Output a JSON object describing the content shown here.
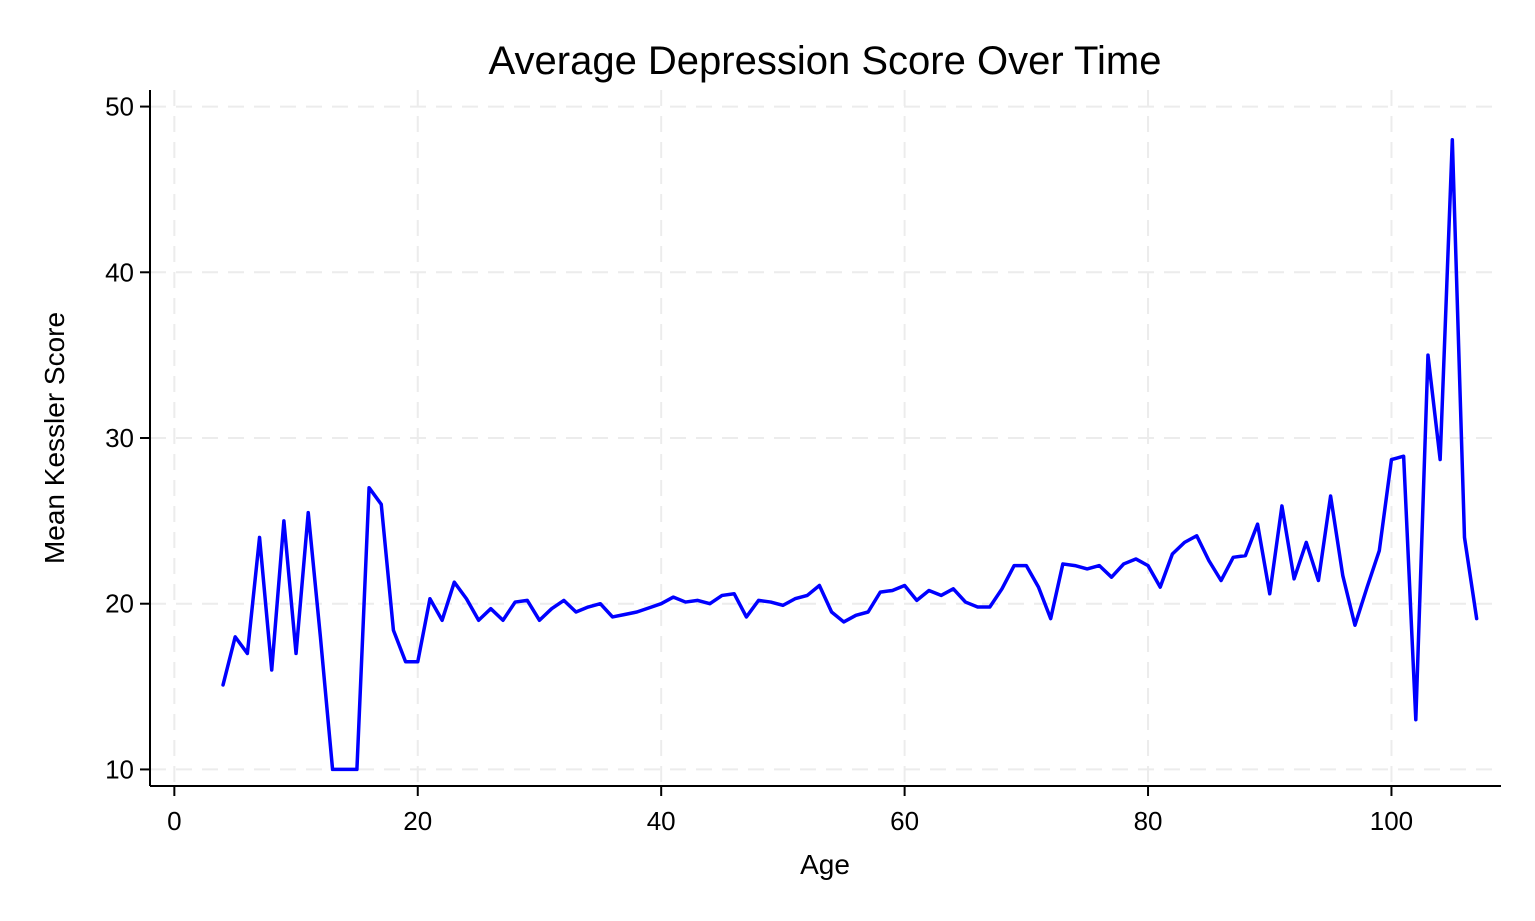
{
  "chart_data": {
    "type": "line",
    "title": "Average Depression Score Over Time",
    "xlabel": "Age",
    "ylabel": "Mean Kessler Score",
    "xlim": [
      -2,
      109
    ],
    "ylim": [
      9,
      51
    ],
    "xticks": [
      0,
      20,
      40,
      60,
      80,
      100
    ],
    "yticks": [
      10,
      20,
      30,
      40,
      50
    ],
    "grid": true,
    "legend": "none",
    "series": [
      {
        "color": "#0000ff",
        "x": [
          4,
          5,
          6,
          7,
          8,
          9,
          10,
          11,
          12,
          13,
          14,
          15,
          16,
          17,
          18,
          19,
          20,
          21,
          22,
          23,
          24,
          25,
          26,
          27,
          28,
          29,
          30,
          31,
          32,
          33,
          34,
          35,
          36,
          37,
          38,
          39,
          40,
          41,
          42,
          43,
          44,
          45,
          46,
          47,
          48,
          49,
          50,
          51,
          52,
          53,
          54,
          55,
          56,
          57,
          58,
          59,
          60,
          61,
          62,
          63,
          64,
          65,
          66,
          67,
          68,
          69,
          70,
          71,
          72,
          73,
          74,
          75,
          76,
          77,
          78,
          79,
          80,
          81,
          82,
          83,
          84,
          85,
          86,
          87,
          88,
          89,
          90,
          91,
          92,
          93,
          94,
          95,
          96,
          97,
          98,
          99,
          100,
          101,
          102,
          103,
          104,
          105,
          106,
          107
        ],
        "y": [
          15.1,
          18.0,
          17.0,
          24.0,
          16.0,
          25.0,
          17.0,
          25.5,
          18.0,
          10.0,
          10.0,
          10.0,
          27.0,
          26.0,
          18.4,
          16.5,
          16.5,
          20.3,
          19.0,
          21.3,
          20.3,
          19.0,
          19.7,
          19.0,
          20.1,
          20.2,
          19.0,
          19.7,
          20.2,
          19.5,
          19.8,
          20.0,
          19.2,
          19.35,
          19.5,
          19.75,
          20.0,
          20.4,
          20.1,
          20.2,
          20.0,
          20.5,
          20.6,
          19.2,
          20.2,
          20.1,
          19.9,
          20.3,
          20.5,
          21.1,
          19.5,
          18.9,
          19.3,
          19.5,
          20.7,
          20.8,
          21.1,
          20.2,
          20.8,
          20.5,
          20.9,
          20.1,
          19.8,
          19.8,
          20.9,
          22.3,
          22.3,
          21.0,
          19.1,
          22.4,
          22.3,
          22.1,
          22.3,
          21.6,
          22.4,
          22.7,
          22.3,
          21.0,
          23.0,
          23.7,
          24.1,
          22.6,
          21.4,
          22.8,
          22.9,
          24.8,
          20.6,
          25.9,
          21.5,
          23.7,
          21.4,
          26.5,
          21.7,
          18.7,
          21.0,
          23.2,
          28.7,
          28.9,
          13.0,
          35.0,
          28.7,
          48.0,
          24.0,
          19.1
        ]
      }
    ]
  }
}
